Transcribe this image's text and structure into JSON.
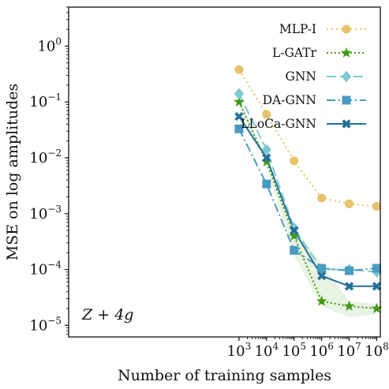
{
  "chart_data": {
    "type": "line",
    "xlabel": "Number of training samples",
    "ylabel": "MSE on log amplitudes",
    "annotation": "Z + 4g",
    "xscale": "log",
    "yscale": "log",
    "xlim": [
      0.00065,
      135000000.0
    ],
    "ylim": [
      6.2e-06,
      5
    ],
    "x": [
      1000,
      10000,
      100000,
      1000000,
      10000000,
      100000000
    ],
    "x_ticks": [
      {
        "value": 1000,
        "base": "10",
        "exp": "3"
      },
      {
        "value": 10000,
        "base": "10",
        "exp": "4"
      },
      {
        "value": 100000,
        "base": "10",
        "exp": "5"
      },
      {
        "value": 1000000,
        "base": "10",
        "exp": "6"
      },
      {
        "value": 10000000,
        "base": "10",
        "exp": "7"
      },
      {
        "value": 100000000,
        "base": "10",
        "exp": "8"
      }
    ],
    "y_ticks": [
      {
        "value": 1e-05,
        "base": "10",
        "exp": "−5"
      },
      {
        "value": 0.0001,
        "base": "10",
        "exp": "−4"
      },
      {
        "value": 0.001,
        "base": "10",
        "exp": "−3"
      },
      {
        "value": 0.01,
        "base": "10",
        "exp": "−2"
      },
      {
        "value": 0.1,
        "base": "10",
        "exp": "−1"
      },
      {
        "value": 1,
        "base": "10",
        "exp": "0"
      }
    ],
    "legend_position": "top-right",
    "grid": false,
    "series": [
      {
        "name": "MLP-I",
        "color": "#e8c26a",
        "marker": "circle",
        "dash": "2,4",
        "values": [
          0.38,
          0.06,
          0.0088,
          0.0019,
          0.0015,
          0.00135
        ]
      },
      {
        "name": "L-GATr",
        "color": "#3f9a16",
        "marker": "star",
        "dash": "2,3",
        "values": [
          0.1,
          0.0085,
          0.0004,
          2.7e-05,
          2.2e-05,
          2e-05
        ],
        "band": [
          [
            0.11,
            0.09
          ],
          [
            0.01,
            0.007
          ],
          [
            0.00055,
            0.00018
          ],
          [
            0.00013,
            2.2e-05
          ],
          [
            2.7e-05,
            1.4e-05
          ],
          [
            2.4e-05,
            1.6e-05
          ]
        ]
      },
      {
        "name": "GNN",
        "color": "#7ec8d0",
        "marker": "diamond",
        "dash": "12,5",
        "values": [
          0.14,
          0.014,
          0.00055,
          0.0001,
          0.0001,
          9e-05
        ]
      },
      {
        "name": "DA-GNN",
        "color": "#4a9bc1",
        "marker": "square",
        "dash": "11,4,2,4",
        "values": [
          0.033,
          0.0034,
          0.00022,
          0.000105,
          9.5e-05,
          0.000105
        ]
      },
      {
        "name": "LLoCa-GNN",
        "color": "#226f98",
        "marker": "x",
        "dash": "",
        "values": [
          0.055,
          0.01,
          0.0005,
          7.7e-05,
          5e-05,
          5e-05
        ]
      }
    ]
  }
}
